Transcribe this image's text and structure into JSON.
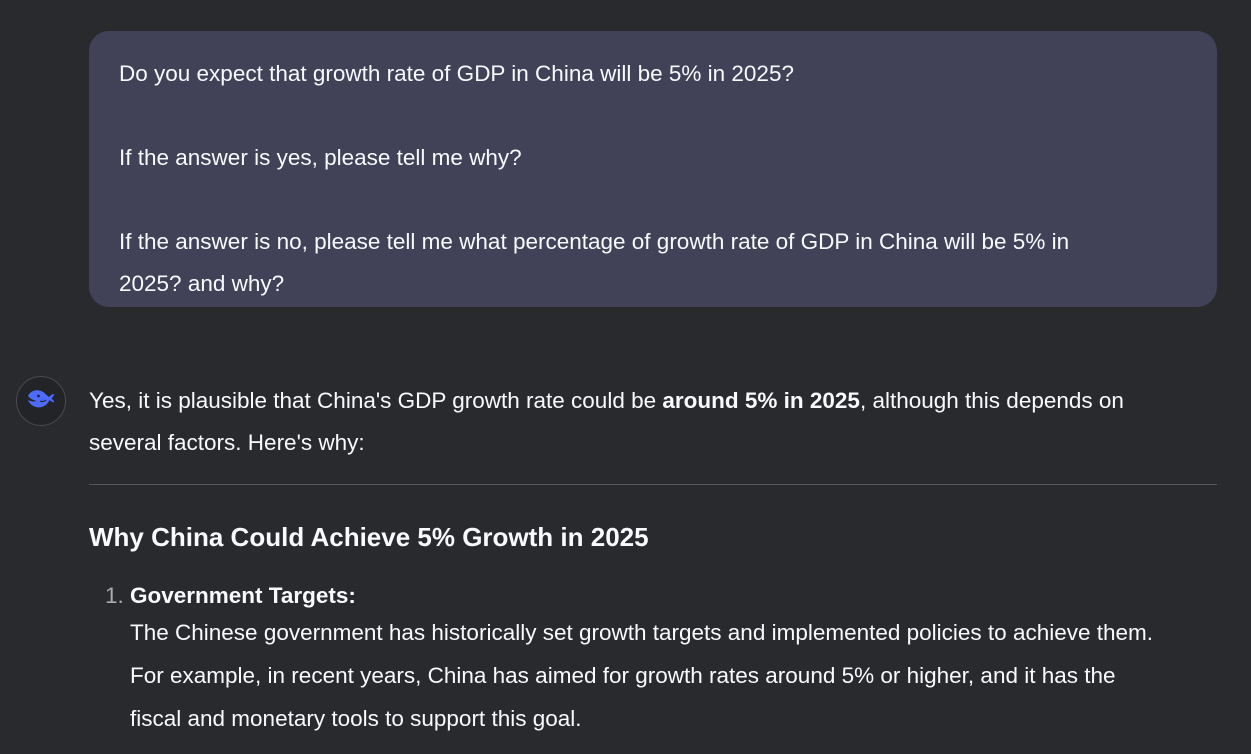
{
  "user_message": {
    "line1": "Do you expect that growth rate of GDP in China will be 5% in 2025?",
    "line2": "If the answer is yes, please tell me why?",
    "line3a": "If the answer is no, please tell me what percentage of growth rate of GDP in China will be 5% in",
    "line3b": "2025? and why?"
  },
  "assistant": {
    "avatar_icon": "deepseek-whale-icon",
    "intro_pre": "Yes, it is plausible that China's GDP growth rate could be ",
    "intro_bold": "around 5% in 2025",
    "intro_post1": ", although this depends on",
    "intro_post2": "several factors. Here's why:",
    "heading": "Why China Could Achieve 5% Growth in 2025",
    "items": [
      {
        "number": "1.",
        "title": "Government Targets:",
        "body_line1": "The Chinese government has historically set growth targets and implemented policies to achieve them.",
        "body_line2": "For example, in recent years, China has aimed for growth rates around 5% or higher, and it has the",
        "body_line3": "fiscal and monetary tools to support this goal."
      }
    ]
  },
  "colors": {
    "background": "#292a2d",
    "user_bubble": "#414158",
    "text": "#f8faff",
    "accent": "#4d6bfe"
  }
}
